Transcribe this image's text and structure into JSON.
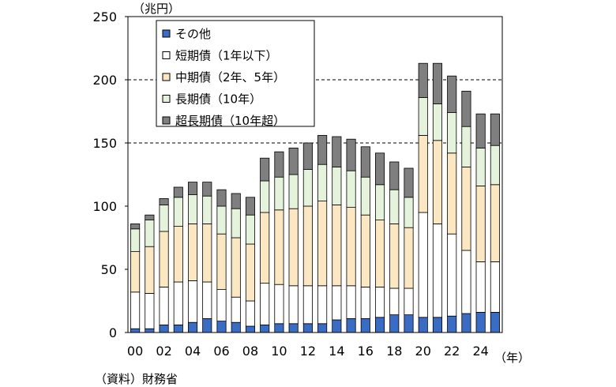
{
  "chart_data": {
    "type": "bar",
    "stacked": true,
    "unit_label": "（兆円）",
    "x_unit_label": "（年）",
    "source_note": "（資料）財務省",
    "ylim": [
      0,
      250
    ],
    "yticks": [
      0,
      50,
      100,
      150,
      200,
      250
    ],
    "grid": "horizontal dashed at 150 and 200",
    "legend_position": "top-left",
    "categories": [
      "00",
      "01",
      "02",
      "03",
      "04",
      "05",
      "06",
      "07",
      "08",
      "09",
      "10",
      "11",
      "12",
      "13",
      "14",
      "15",
      "16",
      "17",
      "18",
      "19",
      "20",
      "21",
      "22",
      "23",
      "24",
      "25"
    ],
    "tick_labels": [
      "00",
      "",
      "02",
      "",
      "04",
      "",
      "06",
      "",
      "08",
      "",
      "10",
      "",
      "12",
      "",
      "14",
      "",
      "16",
      "",
      "18",
      "",
      "20",
      "",
      "22",
      "",
      "24",
      ""
    ],
    "series": [
      {
        "name": "その他",
        "color": "#3b6cc4",
        "values": [
          3,
          3,
          6,
          6,
          8,
          11,
          9,
          8,
          5,
          6,
          7,
          7,
          7,
          7,
          10,
          11,
          11,
          12,
          14,
          14,
          12,
          12,
          13,
          15,
          16,
          16
        ]
      },
      {
        "name": "短期債（1年以下）",
        "color": "#ffffff",
        "values": [
          29,
          28,
          30,
          34,
          33,
          29,
          25,
          20,
          20,
          33,
          31,
          30,
          30,
          30,
          27,
          26,
          25,
          24,
          21,
          21,
          83,
          74,
          65,
          50,
          40,
          40
        ]
      },
      {
        "name": "中期債（2年、5年）",
        "color": "#fbe7c2",
        "values": [
          32,
          37,
          44,
          44,
          45,
          46,
          44,
          47,
          45,
          56,
          59,
          61,
          63,
          67,
          64,
          62,
          57,
          53,
          51,
          48,
          61,
          66,
          64,
          66,
          60,
          61
        ]
      },
      {
        "name": "長期債（10年）",
        "color": "#e5f3dc",
        "values": [
          18,
          21,
          21,
          23,
          23,
          22,
          22,
          23,
          23,
          25,
          26,
          27,
          29,
          29,
          30,
          29,
          30,
          28,
          27,
          24,
          30,
          29,
          32,
          32,
          30,
          31
        ]
      },
      {
        "name": "超長期債（10年超）",
        "color": "#7f7f7f",
        "values": [
          4,
          4,
          5,
          8,
          10,
          11,
          13,
          12,
          14,
          18,
          20,
          21,
          21,
          23,
          24,
          25,
          24,
          25,
          22,
          23,
          27,
          32,
          29,
          28,
          27,
          25
        ]
      }
    ]
  }
}
